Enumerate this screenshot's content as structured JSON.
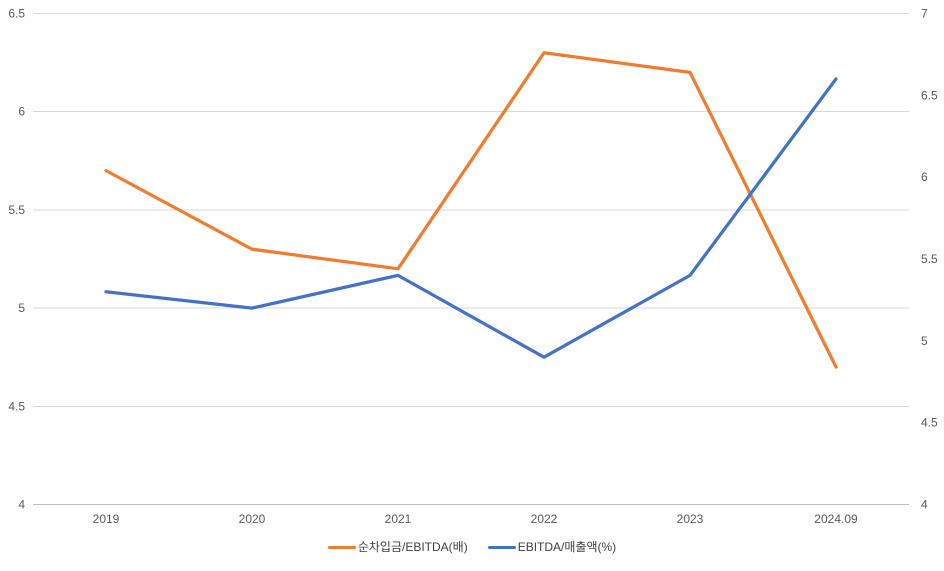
{
  "chart_data": {
    "type": "line",
    "title": "",
    "categories": [
      "2019",
      "2020",
      "2021",
      "2022",
      "2023",
      "2024.09"
    ],
    "series": [
      {
        "name": "순차입금/EBITDA(배)",
        "axis": "left",
        "color": "#ED7D31",
        "values": [
          5.7,
          5.3,
          5.2,
          6.3,
          6.2,
          4.7
        ]
      },
      {
        "name": "EBITDA/매출액(%)",
        "axis": "right",
        "color": "#4472C4",
        "values": [
          5.3,
          5.2,
          5.4,
          4.9,
          5.4,
          6.6
        ]
      }
    ],
    "left_axis": {
      "min": 4,
      "max": 6.5,
      "step": 0.5,
      "ticks": [
        "4",
        "4.5",
        "5",
        "5.5",
        "6",
        "6.5"
      ]
    },
    "right_axis": {
      "min": 4,
      "max": 7,
      "step": 0.5,
      "ticks": [
        "4",
        "4.5",
        "5",
        "5.5",
        "6",
        "6.5",
        "7"
      ]
    },
    "grid": true,
    "legend_position": "bottom",
    "colors": {
      "gridline": "#D9D9D9",
      "axis_line": "#BFBFBF",
      "tick_label": "#595959",
      "legend_label": "#404040",
      "background": "#FFFFFF"
    }
  }
}
